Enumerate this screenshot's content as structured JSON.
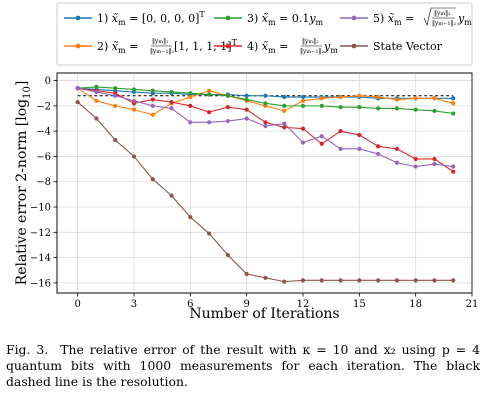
{
  "chart_data": {
    "type": "line",
    "xlabel": "Number of Iterations",
    "ylabel": "Relative error 2-norm [log10]",
    "xlim": [
      -1.1,
      21
    ],
    "ylim": [
      -16.8,
      0.6
    ],
    "xticks": [
      0,
      3,
      6,
      9,
      12,
      15,
      18,
      21
    ],
    "yticks": [
      0,
      -2,
      -4,
      -6,
      -8,
      -10,
      -12,
      -14,
      -16
    ],
    "grid": true,
    "legend_placement": "top, above plot",
    "resolution_line": {
      "y": -1.2,
      "style": "dashed",
      "color": "#000000"
    },
    "series": [
      {
        "name": "1) x̃m = [0,0,0,0]ᵀ",
        "color": "#1f77b4",
        "x": [
          0,
          1,
          2,
          3,
          4,
          5,
          6,
          7,
          8,
          9,
          10,
          11,
          12,
          13,
          14,
          15,
          16,
          17,
          18,
          19,
          20
        ],
        "y": [
          -0.6,
          -0.7,
          -0.8,
          -0.9,
          -1.0,
          -1.0,
          -1.1,
          -1.1,
          -1.1,
          -1.2,
          -1.2,
          -1.3,
          -1.3,
          -1.3,
          -1.3,
          -1.3,
          -1.4,
          -1.4,
          -1.4,
          -1.4,
          -1.4
        ]
      },
      {
        "name": "2) x̃m = (‖ym‖₂ / ‖ym−1‖₂)[1,1,1,1]ᵀ",
        "color": "#ff7f0e",
        "x": [
          0,
          1,
          2,
          3,
          4,
          5,
          6,
          7,
          8,
          9,
          10,
          11,
          12,
          13,
          14,
          15,
          16,
          17,
          18,
          19,
          20
        ],
        "y": [
          -0.6,
          -1.6,
          -2.0,
          -2.3,
          -2.7,
          -1.8,
          -1.3,
          -0.8,
          -1.2,
          -1.6,
          -2.0,
          -2.4,
          -1.6,
          -1.4,
          -1.3,
          -1.2,
          -1.3,
          -1.5,
          -1.4,
          -1.4,
          -1.8
        ]
      },
      {
        "name": "3) x̃m = 0.1ym",
        "color": "#2ca02c",
        "x": [
          0,
          1,
          2,
          3,
          4,
          5,
          6,
          7,
          8,
          9,
          10,
          11,
          12,
          13,
          14,
          15,
          16,
          17,
          18,
          19,
          20
        ],
        "y": [
          -0.6,
          -0.5,
          -0.6,
          -0.7,
          -0.8,
          -0.9,
          -1.0,
          -1.1,
          -1.2,
          -1.5,
          -1.8,
          -2.0,
          -2.0,
          -2.0,
          -2.1,
          -2.1,
          -2.2,
          -2.2,
          -2.3,
          -2.4,
          -2.6
        ]
      },
      {
        "name": "4) x̃m = (‖ym‖₂ / ‖ym−1‖₂)ym",
        "color": "#d62728",
        "x": [
          0,
          1,
          2,
          3,
          4,
          5,
          6,
          7,
          8,
          9,
          10,
          11,
          12,
          13,
          14,
          15,
          16,
          17,
          18,
          19,
          20
        ],
        "y": [
          -0.6,
          -0.8,
          -1.0,
          -1.8,
          -1.5,
          -1.7,
          -2.0,
          -2.5,
          -2.1,
          -2.3,
          -3.3,
          -3.7,
          -3.8,
          -5.0,
          -4.0,
          -4.3,
          -5.2,
          -5.4,
          -6.2,
          -6.2,
          -7.2
        ]
      },
      {
        "name": "5) x̃m = √(‖ym‖₂ / ‖ym−1‖₂) ym",
        "color": "#9467bd",
        "x": [
          0,
          1,
          2,
          3,
          4,
          5,
          6,
          7,
          8,
          9,
          10,
          11,
          12,
          13,
          14,
          15,
          16,
          17,
          18,
          19,
          20
        ],
        "y": [
          -0.6,
          -0.9,
          -1.2,
          -1.6,
          -2.0,
          -2.2,
          -3.3,
          -3.3,
          -3.2,
          -3.0,
          -3.6,
          -3.4,
          -4.9,
          -4.4,
          -5.4,
          -5.4,
          -5.8,
          -6.5,
          -6.8,
          -6.6,
          -6.8
        ]
      },
      {
        "name": "State Vector",
        "color": "#8c564b",
        "x": [
          0,
          1,
          2,
          3,
          4,
          5,
          6,
          7,
          8,
          9,
          10,
          11,
          12,
          13,
          14,
          15,
          16,
          17,
          18,
          19,
          20
        ],
        "y": [
          -1.7,
          -3.0,
          -4.7,
          -6.0,
          -7.8,
          -9.1,
          -10.8,
          -12.1,
          -13.8,
          -15.3,
          -15.6,
          -15.9,
          -15.8,
          -15.8,
          -15.8,
          -15.8,
          -15.8,
          -15.8,
          -15.8,
          -15.8,
          -15.8
        ]
      }
    ]
  },
  "caption": {
    "fig_label": "Fig. 3.",
    "text": "The relative error of the result with κ = 10 and x₂ using p = 4 quantum bits with 1000 measurements for each iteration. The black dashed line is the resolution."
  }
}
